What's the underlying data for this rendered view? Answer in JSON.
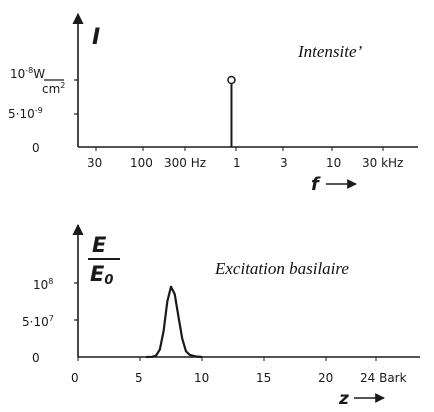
{
  "chart_data": [
    {
      "type": "line",
      "title": "Intensite’",
      "ylabel": "I",
      "xlabel": "f",
      "x_scale": "log",
      "x_ticks": [
        "30",
        "100",
        "300 Hz",
        "1",
        "3",
        "10",
        "30 kHz"
      ],
      "y_ticks": [
        {
          "label": "10⁻⁸ W/cm²",
          "value": "1e-8"
        },
        {
          "label": "5·10⁻⁹",
          "value": "5e-9"
        },
        {
          "label": "0",
          "value": "0"
        }
      ],
      "series": [
        {
          "x_hz": 800,
          "y": 1e-08
        }
      ]
    },
    {
      "type": "line",
      "title": "Excitation basilaire",
      "ylabel": "E/E₀",
      "xlabel": "z",
      "x_unit": "Bark",
      "x_ticks": [
        "0",
        "5",
        "10",
        "15",
        "20",
        "24 Bark"
      ],
      "y_ticks": [
        {
          "label": "10⁸",
          "value": "1e8"
        },
        {
          "label": "5·10⁷",
          "value": "5e7"
        },
        {
          "label": "0",
          "value": "0"
        }
      ],
      "xlim": [
        0,
        24
      ],
      "ylim": [
        0,
        100000000
      ],
      "series": [
        {
          "x": [
            5.5,
            6.0,
            6.3,
            6.6,
            6.9,
            7.2,
            7.5,
            7.8,
            8.1,
            8.4,
            8.7,
            9.0,
            9.5,
            10.0
          ],
          "y": [
            0,
            300000,
            2000000,
            10000000,
            35000000,
            75000000,
            95000000,
            85000000,
            55000000,
            25000000,
            8000000,
            3000000,
            700000,
            0
          ]
        }
      ]
    }
  ]
}
